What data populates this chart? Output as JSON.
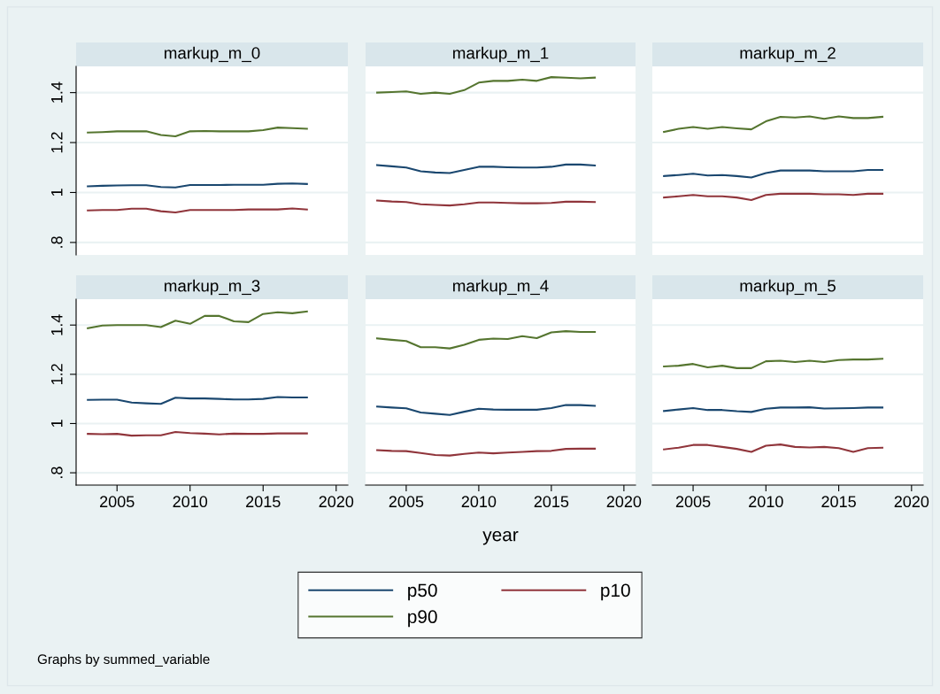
{
  "chart_data": [
    {
      "type": "line",
      "title": "markup_m_0",
      "x": [
        2003,
        2004,
        2005,
        2006,
        2007,
        2008,
        2009,
        2010,
        2011,
        2012,
        2013,
        2014,
        2015,
        2016,
        2017,
        2018
      ],
      "xlim": [
        2002.2,
        2020.8
      ],
      "ylim": [
        0.75,
        1.505
      ],
      "yticks": [
        {
          "value": 0.8,
          "label": ".8"
        },
        1,
        1.2,
        1.4
      ],
      "grid": "y",
      "tick_labels": "y",
      "legend": "bottom",
      "series": [
        {
          "name": "p50",
          "color": "#1a476f",
          "values": [
            1.025,
            1.027,
            1.028,
            1.029,
            1.029,
            1.022,
            1.02,
            1.03,
            1.03,
            1.03,
            1.031,
            1.031,
            1.031,
            1.035,
            1.036,
            1.034
          ]
        },
        {
          "name": "p90",
          "color": "#55752f",
          "values": [
            1.24,
            1.242,
            1.245,
            1.245,
            1.245,
            1.23,
            1.225,
            1.245,
            1.246,
            1.245,
            1.245,
            1.245,
            1.25,
            1.26,
            1.258,
            1.255
          ]
        },
        {
          "name": "p10",
          "color": "#90353b",
          "values": [
            0.928,
            0.93,
            0.93,
            0.935,
            0.935,
            0.925,
            0.92,
            0.93,
            0.93,
            0.93,
            0.93,
            0.932,
            0.932,
            0.932,
            0.936,
            0.932
          ]
        }
      ]
    },
    {
      "type": "line",
      "title": "markup_m_1",
      "x": [
        2003,
        2004,
        2005,
        2006,
        2007,
        2008,
        2009,
        2010,
        2011,
        2012,
        2013,
        2014,
        2015,
        2016,
        2017,
        2018
      ],
      "xlim": [
        2002.2,
        2020.8
      ],
      "ylim": [
        0.75,
        1.505
      ],
      "yticks": [
        {
          "value": 0.8,
          "label": null
        },
        {
          "value": 1,
          "label": null
        },
        {
          "value": 1.2,
          "label": null
        },
        {
          "value": 1.4,
          "label": null
        }
      ],
      "grid": "y",
      "tick_labels": false,
      "series": [
        {
          "color": "#1a476f",
          "values": [
            1.11,
            1.105,
            1.1,
            1.085,
            1.08,
            1.078,
            1.09,
            1.103,
            1.103,
            1.101,
            1.1,
            1.1,
            1.103,
            1.112,
            1.112,
            1.108
          ]
        },
        {
          "color": "#55752f",
          "values": [
            1.4,
            1.402,
            1.405,
            1.395,
            1.4,
            1.395,
            1.41,
            1.44,
            1.447,
            1.447,
            1.452,
            1.447,
            1.462,
            1.46,
            1.457,
            1.46
          ]
        },
        {
          "color": "#90353b",
          "values": [
            0.968,
            0.964,
            0.962,
            0.953,
            0.95,
            0.948,
            0.953,
            0.96,
            0.96,
            0.958,
            0.957,
            0.957,
            0.958,
            0.963,
            0.963,
            0.962
          ]
        }
      ]
    },
    {
      "type": "line",
      "title": "markup_m_2",
      "x": [
        2003,
        2004,
        2005,
        2006,
        2007,
        2008,
        2009,
        2010,
        2011,
        2012,
        2013,
        2014,
        2015,
        2016,
        2017,
        2018
      ],
      "xlim": [
        2002.2,
        2020.8
      ],
      "ylim": [
        0.75,
        1.505
      ],
      "yticks": [
        {
          "value": 0.8,
          "label": null
        },
        {
          "value": 1,
          "label": null
        },
        {
          "value": 1.2,
          "label": null
        },
        {
          "value": 1.4,
          "label": null
        }
      ],
      "grid": "y",
      "tick_labels": false,
      "series": [
        {
          "color": "#1a476f",
          "values": [
            1.066,
            1.07,
            1.075,
            1.068,
            1.07,
            1.066,
            1.06,
            1.078,
            1.088,
            1.088,
            1.088,
            1.085,
            1.085,
            1.085,
            1.09,
            1.09
          ]
        },
        {
          "color": "#55752f",
          "values": [
            1.243,
            1.255,
            1.262,
            1.255,
            1.262,
            1.257,
            1.253,
            1.285,
            1.303,
            1.3,
            1.305,
            1.295,
            1.305,
            1.298,
            1.298,
            1.303
          ]
        },
        {
          "color": "#90353b",
          "values": [
            0.98,
            0.985,
            0.99,
            0.985,
            0.985,
            0.98,
            0.97,
            0.99,
            0.995,
            0.995,
            0.995,
            0.993,
            0.993,
            0.99,
            0.995,
            0.995
          ]
        }
      ]
    },
    {
      "type": "line",
      "title": "markup_m_3",
      "x": [
        2003,
        2004,
        2005,
        2006,
        2007,
        2008,
        2009,
        2010,
        2011,
        2012,
        2013,
        2014,
        2015,
        2016,
        2017,
        2018
      ],
      "xlim": [
        2002.2,
        2020.8
      ],
      "ylim": [
        0.75,
        1.505
      ],
      "xticks": [
        2005,
        2010,
        2015,
        2020
      ],
      "yticks": [
        {
          "value": 0.8,
          "label": ".8"
        },
        1,
        1.2,
        1.4
      ],
      "grid": "y",
      "series": [
        {
          "color": "#1a476f",
          "values": [
            1.096,
            1.097,
            1.097,
            1.085,
            1.082,
            1.08,
            1.105,
            1.102,
            1.102,
            1.1,
            1.098,
            1.098,
            1.1,
            1.108,
            1.106,
            1.106
          ]
        },
        {
          "color": "#55752f",
          "values": [
            1.387,
            1.398,
            1.4,
            1.4,
            1.4,
            1.392,
            1.418,
            1.405,
            1.437,
            1.437,
            1.415,
            1.412,
            1.445,
            1.452,
            1.448,
            1.455
          ]
        },
        {
          "color": "#90353b",
          "values": [
            0.958,
            0.957,
            0.958,
            0.951,
            0.952,
            0.952,
            0.966,
            0.961,
            0.959,
            0.956,
            0.959,
            0.958,
            0.958,
            0.96,
            0.96,
            0.96
          ]
        }
      ]
    },
    {
      "type": "line",
      "title": "markup_m_4",
      "xlabel": "year",
      "x": [
        2003,
        2004,
        2005,
        2006,
        2007,
        2008,
        2009,
        2010,
        2011,
        2012,
        2013,
        2014,
        2015,
        2016,
        2017,
        2018
      ],
      "xlim": [
        2002.2,
        2020.8
      ],
      "ylim": [
        0.75,
        1.505
      ],
      "xticks": [
        2005,
        2010,
        2015,
        2020
      ],
      "yticks": [
        {
          "value": 0.8,
          "label": null
        },
        {
          "value": 1,
          "label": null
        },
        {
          "value": 1.2,
          "label": null
        },
        {
          "value": 1.4,
          "label": null
        }
      ],
      "grid": "y",
      "tick_labels": "x",
      "series": [
        {
          "color": "#1a476f",
          "values": [
            1.069,
            1.065,
            1.062,
            1.045,
            1.04,
            1.035,
            1.048,
            1.06,
            1.057,
            1.056,
            1.056,
            1.056,
            1.063,
            1.075,
            1.075,
            1.072
          ]
        },
        {
          "color": "#55752f",
          "values": [
            1.346,
            1.34,
            1.335,
            1.31,
            1.31,
            1.305,
            1.32,
            1.34,
            1.345,
            1.343,
            1.355,
            1.347,
            1.37,
            1.375,
            1.372,
            1.372
          ]
        },
        {
          "color": "#90353b",
          "values": [
            0.892,
            0.889,
            0.888,
            0.88,
            0.872,
            0.87,
            0.877,
            0.882,
            0.879,
            0.882,
            0.885,
            0.888,
            0.889,
            0.897,
            0.898,
            0.898
          ]
        }
      ]
    },
    {
      "type": "line",
      "title": "markup_m_5",
      "x": [
        2003,
        2004,
        2005,
        2006,
        2007,
        2008,
        2009,
        2010,
        2011,
        2012,
        2013,
        2014,
        2015,
        2016,
        2017,
        2018
      ],
      "xlim": [
        2002.2,
        2020.8
      ],
      "ylim": [
        0.75,
        1.505
      ],
      "xticks": [
        2005,
        2010,
        2015,
        2020
      ],
      "yticks": [
        {
          "value": 0.8,
          "label": null
        },
        {
          "value": 1,
          "label": null
        },
        {
          "value": 1.2,
          "label": null
        },
        {
          "value": 1.4,
          "label": null
        }
      ],
      "grid": "y",
      "tick_labels": "x",
      "annotations": [
        "Graphs by summed_variable"
      ],
      "series": [
        {
          "color": "#1a476f",
          "values": [
            1.051,
            1.057,
            1.063,
            1.055,
            1.055,
            1.05,
            1.047,
            1.06,
            1.065,
            1.065,
            1.066,
            1.061,
            1.062,
            1.063,
            1.065,
            1.065
          ]
        },
        {
          "color": "#55752f",
          "values": [
            1.232,
            1.235,
            1.242,
            1.228,
            1.235,
            1.225,
            1.225,
            1.253,
            1.255,
            1.25,
            1.255,
            1.25,
            1.258,
            1.26,
            1.26,
            1.263
          ]
        },
        {
          "color": "#90353b",
          "values": [
            0.895,
            0.902,
            0.913,
            0.913,
            0.905,
            0.897,
            0.885,
            0.91,
            0.915,
            0.905,
            0.903,
            0.905,
            0.9,
            0.885,
            0.9,
            0.902
          ]
        }
      ]
    }
  ]
}
